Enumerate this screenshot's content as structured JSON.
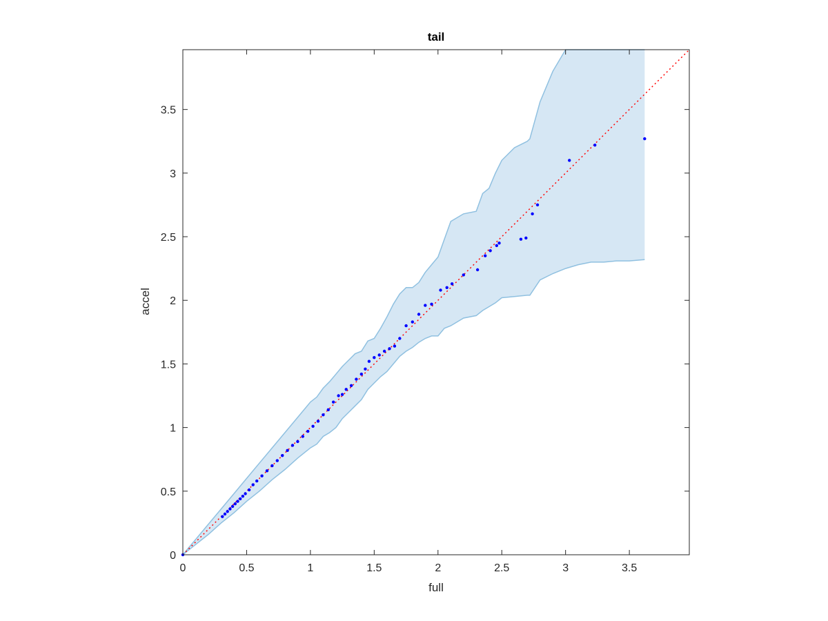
{
  "chart_data": {
    "type": "scatter",
    "title": "tail",
    "xlabel": "full",
    "ylabel": "accel",
    "xlim": [
      0,
      3.97
    ],
    "ylim": [
      0,
      3.97
    ],
    "xticks": [
      "0",
      "0.5",
      "1",
      "1.5",
      "2",
      "2.5",
      "3",
      "3.5"
    ],
    "yticks": [
      "0",
      "0.5",
      "1",
      "1.5",
      "2",
      "2.5",
      "3",
      "3.5"
    ],
    "grid": false,
    "legend": "none",
    "colors": {
      "points": "#0000ff",
      "reference_line": "#ff0000",
      "band_fill": "#d6e7f4",
      "band_edge": "#8fc0e0",
      "axes": "#262626"
    },
    "reference_line": {
      "x": [
        0,
        3.97
      ],
      "y": [
        0,
        3.97
      ],
      "style": "dotted"
    },
    "band": {
      "x": [
        0,
        0.05,
        0.1,
        0.2,
        0.3,
        0.4,
        0.5,
        0.6,
        0.7,
        0.8,
        0.9,
        1.0,
        1.05,
        1.1,
        1.15,
        1.2,
        1.25,
        1.3,
        1.35,
        1.4,
        1.45,
        1.5,
        1.55,
        1.6,
        1.65,
        1.7,
        1.75,
        1.8,
        1.85,
        1.9,
        1.95,
        2.0,
        2.05,
        2.1,
        2.2,
        2.3,
        2.35,
        2.4,
        2.45,
        2.5,
        2.6,
        2.7,
        2.72,
        2.8,
        2.9,
        3.0,
        3.1,
        3.2,
        3.3,
        3.4,
        3.5,
        3.62
      ],
      "upper": [
        0,
        0.06,
        0.12,
        0.24,
        0.36,
        0.48,
        0.6,
        0.72,
        0.84,
        0.96,
        1.08,
        1.2,
        1.24,
        1.31,
        1.36,
        1.42,
        1.48,
        1.53,
        1.58,
        1.6,
        1.68,
        1.7,
        1.78,
        1.87,
        1.97,
        2.05,
        2.1,
        2.1,
        2.14,
        2.22,
        2.28,
        2.34,
        2.48,
        2.62,
        2.68,
        2.7,
        2.84,
        2.88,
        3.0,
        3.1,
        3.2,
        3.25,
        3.27,
        3.56,
        3.8,
        3.97,
        3.97,
        3.97,
        3.97,
        3.97,
        3.97,
        3.97
      ],
      "lower": [
        0,
        0.04,
        0.08,
        0.16,
        0.25,
        0.33,
        0.42,
        0.5,
        0.59,
        0.67,
        0.76,
        0.84,
        0.87,
        0.93,
        0.96,
        1.0,
        1.07,
        1.12,
        1.17,
        1.22,
        1.3,
        1.35,
        1.4,
        1.44,
        1.5,
        1.56,
        1.6,
        1.63,
        1.67,
        1.7,
        1.72,
        1.72,
        1.78,
        1.8,
        1.86,
        1.88,
        1.92,
        1.95,
        1.98,
        2.02,
        2.03,
        2.04,
        2.04,
        2.16,
        2.21,
        2.25,
        2.28,
        2.3,
        2.3,
        2.31,
        2.31,
        2.32
      ]
    },
    "points": {
      "x": [
        0,
        0.31,
        0.33,
        0.35,
        0.37,
        0.39,
        0.41,
        0.43,
        0.45,
        0.47,
        0.49,
        0.52,
        0.55,
        0.58,
        0.62,
        0.66,
        0.7,
        0.74,
        0.78,
        0.82,
        0.86,
        0.9,
        0.94,
        0.98,
        1.02,
        1.06,
        1.1,
        1.14,
        1.18,
        1.22,
        1.25,
        1.28,
        1.32,
        1.36,
        1.4,
        1.43,
        1.46,
        1.5,
        1.54,
        1.58,
        1.62,
        1.66,
        1.7,
        1.75,
        1.8,
        1.85,
        1.9,
        1.95,
        2.02,
        2.07,
        2.11,
        2.2,
        2.31,
        2.37,
        2.41,
        2.46,
        2.48,
        2.65,
        2.69,
        2.74,
        2.78,
        3.03,
        3.23,
        3.62
      ],
      "y": [
        0,
        0.3,
        0.32,
        0.34,
        0.36,
        0.38,
        0.4,
        0.42,
        0.44,
        0.46,
        0.48,
        0.51,
        0.55,
        0.58,
        0.62,
        0.66,
        0.7,
        0.74,
        0.78,
        0.82,
        0.86,
        0.89,
        0.93,
        0.97,
        1.01,
        1.05,
        1.1,
        1.14,
        1.2,
        1.25,
        1.26,
        1.3,
        1.33,
        1.38,
        1.42,
        1.46,
        1.52,
        1.55,
        1.57,
        1.6,
        1.62,
        1.64,
        1.7,
        1.8,
        1.83,
        1.89,
        1.96,
        1.97,
        2.08,
        2.1,
        2.13,
        2.2,
        2.24,
        2.35,
        2.39,
        2.43,
        2.45,
        2.48,
        2.49,
        2.68,
        2.75,
        3.1,
        3.22,
        3.27
      ]
    }
  }
}
